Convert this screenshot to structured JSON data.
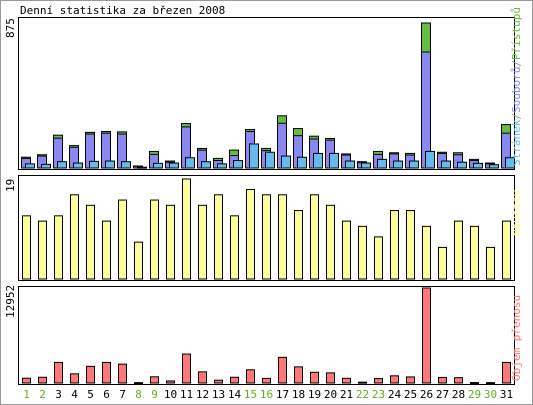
{
  "title": "Denní statistika za březen 2008",
  "colors": {
    "access": "#66bb44",
    "files": "#8888ee",
    "pages": "#66bbee",
    "visits": "#ffff99",
    "volume": "#ff7777",
    "weekend": "#66aa22",
    "frame": "#999999"
  },
  "chart_data": [
    {
      "type": "bar",
      "panel": "top",
      "ymax_label": "875",
      "ymax": 875,
      "legend": [
        {
          "text": "Stránek",
          "color": "#66bbee"
        },
        {
          "text": "/",
          "color": "#999999"
        },
        {
          "text": "Souborů",
          "color": "#8888ee"
        },
        {
          "text": "/",
          "color": "#999999"
        },
        {
          "text": "Přístupů",
          "color": "#66bb44"
        }
      ],
      "categories": [
        "1",
        "2",
        "3",
        "4",
        "5",
        "6",
        "7",
        "8",
        "9",
        "10",
        "11",
        "12",
        "13",
        "14",
        "15",
        "16",
        "17",
        "18",
        "19",
        "20",
        "21",
        "22",
        "23",
        "24",
        "25",
        "26",
        "27",
        "28",
        "29",
        "30",
        "31"
      ],
      "series": [
        {
          "name": "Přístupů",
          "values": [
            65,
            80,
            198,
            135,
            215,
            220,
            218,
            12,
            100,
            42,
            268,
            118,
            58,
            108,
            232,
            118,
            315,
            238,
            192,
            178,
            85,
            38,
            100,
            92,
            88,
            875,
            95,
            92,
            52,
            30,
            262
          ]
        },
        {
          "name": "Souborů",
          "values": [
            58,
            72,
            180,
            125,
            205,
            210,
            205,
            10,
            82,
            35,
            248,
            108,
            45,
            75,
            220,
            105,
            270,
            195,
            175,
            168,
            78,
            32,
            82,
            85,
            78,
            700,
            88,
            80,
            45,
            25,
            210
          ]
        },
        {
          "name": "Stránek",
          "values": [
            25,
            22,
            38,
            30,
            40,
            42,
            38,
            5,
            28,
            30,
            62,
            38,
            25,
            45,
            145,
            95,
            72,
            65,
            88,
            88,
            42,
            30,
            52,
            42,
            42,
            100,
            42,
            35,
            28,
            20,
            62
          ]
        }
      ]
    },
    {
      "type": "bar",
      "panel": "middle",
      "ymax_label": "19",
      "ymax": 19,
      "legend": [
        {
          "text": "Návštěv",
          "color": "#ffff99"
        }
      ],
      "categories": [
        "1",
        "2",
        "3",
        "4",
        "5",
        "6",
        "7",
        "8",
        "9",
        "10",
        "11",
        "12",
        "13",
        "14",
        "15",
        "16",
        "17",
        "18",
        "19",
        "20",
        "21",
        "22",
        "23",
        "24",
        "25",
        "26",
        "27",
        "28",
        "29",
        "30",
        "31"
      ],
      "series": [
        {
          "name": "Návštěv",
          "values": [
            12,
            11,
            12,
            16,
            14,
            11,
            15,
            7,
            15,
            14,
            19,
            14,
            16,
            12,
            17,
            16,
            16,
            13,
            16,
            14,
            11,
            10,
            8,
            13,
            13,
            10,
            6,
            11,
            10,
            6,
            11
          ]
        }
      ]
    },
    {
      "type": "bar",
      "panel": "bottom",
      "ymax_label": "12952",
      "ymax": 12952,
      "legend": [
        {
          "text": "Objem přenosu",
          "color": "#ff7777"
        }
      ],
      "categories": [
        "1",
        "2",
        "3",
        "4",
        "5",
        "6",
        "7",
        "8",
        "9",
        "10",
        "11",
        "12",
        "13",
        "14",
        "15",
        "16",
        "17",
        "18",
        "19",
        "20",
        "21",
        "22",
        "23",
        "24",
        "25",
        "26",
        "27",
        "28",
        "29",
        "30",
        "31"
      ],
      "series": [
        {
          "name": "Objem přenosu",
          "values": [
            650,
            780,
            2800,
            1250,
            2270,
            2800,
            2570,
            50,
            850,
            280,
            3950,
            1520,
            380,
            780,
            1800,
            630,
            3500,
            2200,
            1460,
            1380,
            640,
            110,
            600,
            980,
            830,
            12952,
            760,
            730,
            60,
            50,
            2800
          ]
        }
      ]
    }
  ],
  "x_labels": [
    {
      "label": "1",
      "weekend": true
    },
    {
      "label": "2",
      "weekend": true
    },
    {
      "label": "3",
      "weekend": false
    },
    {
      "label": "4",
      "weekend": false
    },
    {
      "label": "5",
      "weekend": false
    },
    {
      "label": "6",
      "weekend": false
    },
    {
      "label": "7",
      "weekend": false
    },
    {
      "label": "8",
      "weekend": true
    },
    {
      "label": "9",
      "weekend": true
    },
    {
      "label": "10",
      "weekend": false
    },
    {
      "label": "11",
      "weekend": false
    },
    {
      "label": "12",
      "weekend": false
    },
    {
      "label": "13",
      "weekend": false
    },
    {
      "label": "14",
      "weekend": false
    },
    {
      "label": "15",
      "weekend": true
    },
    {
      "label": "16",
      "weekend": true
    },
    {
      "label": "17",
      "weekend": false
    },
    {
      "label": "18",
      "weekend": false
    },
    {
      "label": "19",
      "weekend": false
    },
    {
      "label": "20",
      "weekend": false
    },
    {
      "label": "21",
      "weekend": false
    },
    {
      "label": "22",
      "weekend": true
    },
    {
      "label": "23",
      "weekend": true
    },
    {
      "label": "24",
      "weekend": false
    },
    {
      "label": "25",
      "weekend": false
    },
    {
      "label": "26",
      "weekend": false
    },
    {
      "label": "27",
      "weekend": false
    },
    {
      "label": "28",
      "weekend": false
    },
    {
      "label": "29",
      "weekend": true
    },
    {
      "label": "30",
      "weekend": true
    },
    {
      "label": "31",
      "weekend": false
    }
  ]
}
